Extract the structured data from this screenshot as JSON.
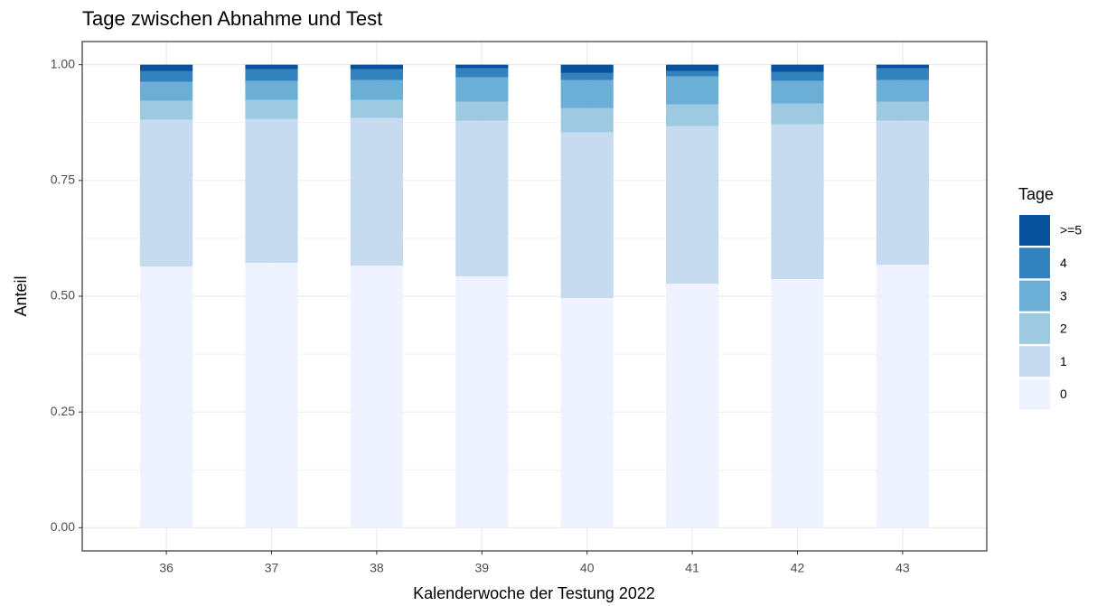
{
  "chart_data": {
    "type": "stacked_bar",
    "title": "Tage zwischen Abnahme und Test",
    "x_label": "Kalenderwoche der Testung 2022",
    "y_label": "Anteil",
    "legend_title": "Tage",
    "categories": [
      "36",
      "37",
      "38",
      "39",
      "40",
      "41",
      "42",
      "43"
    ],
    "series": [
      {
        "name": "0",
        "color": "#eff3ff",
        "values": [
          0.564,
          0.572,
          0.566,
          0.543,
          0.496,
          0.527,
          0.537,
          0.568
        ]
      },
      {
        "name": "1",
        "color": "#c6dbef",
        "values": [
          0.317,
          0.311,
          0.319,
          0.336,
          0.358,
          0.34,
          0.334,
          0.311
        ]
      },
      {
        "name": "2",
        "color": "#9ecae1",
        "values": [
          0.041,
          0.041,
          0.039,
          0.041,
          0.052,
          0.047,
          0.045,
          0.041
        ]
      },
      {
        "name": "3",
        "color": "#6baed6",
        "values": [
          0.041,
          0.041,
          0.043,
          0.053,
          0.061,
          0.061,
          0.049,
          0.047
        ]
      },
      {
        "name": "4",
        "color": "#3182bd",
        "values": [
          0.023,
          0.025,
          0.023,
          0.019,
          0.015,
          0.011,
          0.019,
          0.025
        ]
      },
      {
        "name": ">=5",
        "color": "#08519c",
        "values": [
          0.014,
          0.01,
          0.01,
          0.008,
          0.018,
          0.014,
          0.016,
          0.008
        ]
      }
    ],
    "ylim": [
      -0.05,
      1.05
    ],
    "yticks": [
      {
        "value": 0,
        "label": "0.00"
      },
      {
        "value": 0.25,
        "label": "0.25"
      },
      {
        "value": 0.5,
        "label": "0.50"
      },
      {
        "value": 0.75,
        "label": "0.75"
      },
      {
        "value": 1,
        "label": "1.00"
      }
    ],
    "grid": true
  }
}
